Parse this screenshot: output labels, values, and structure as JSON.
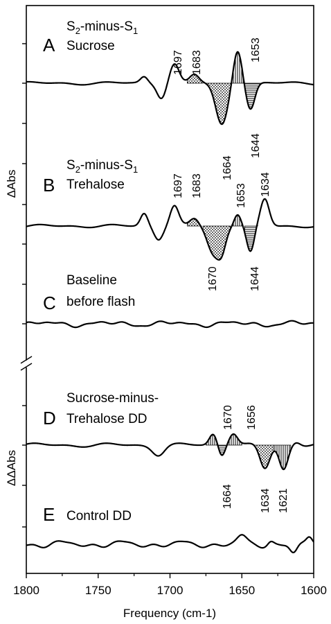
{
  "chart_data": {
    "type": "line",
    "xlabel": "Frequency (cm-1)",
    "xlim": [
      1800,
      1600
    ],
    "x_ticks": [
      "1800",
      "1750",
      "1700",
      "1650",
      "1600"
    ],
    "ylabel_top": "ΔAbs",
    "ylabel_bottom": "ΔΔAbs",
    "panels": [
      {
        "letter": "A",
        "label_line1": "S2-minus-S1",
        "label_line1_parts": {
          "a": "S",
          "sub_a": "2",
          "b": "-minus-S",
          "sub_b": "1"
        },
        "label_line2": "Sucrose",
        "annotations": [
          "1697",
          "1683",
          "1653",
          "1664",
          "1644"
        ]
      },
      {
        "letter": "B",
        "label_line1": "S2-minus-S1",
        "label_line1_parts": {
          "a": "S",
          "sub_a": "2",
          "b": "-minus-S",
          "sub_b": "1"
        },
        "label_line2": "Trehalose",
        "annotations": [
          "1697",
          "1683",
          "1653",
          "1634",
          "1670",
          "1644"
        ]
      },
      {
        "letter": "C",
        "label_line1": "Baseline",
        "label_line2": "before flash",
        "annotations": []
      },
      {
        "letter": "D",
        "label_line1": "Sucrose-minus-",
        "label_line2": "Trehalose DD",
        "annotations": [
          "1670",
          "1656",
          "1664",
          "1634",
          "1621"
        ]
      },
      {
        "letter": "E",
        "label_line1": "Control DD",
        "annotations": []
      }
    ]
  }
}
